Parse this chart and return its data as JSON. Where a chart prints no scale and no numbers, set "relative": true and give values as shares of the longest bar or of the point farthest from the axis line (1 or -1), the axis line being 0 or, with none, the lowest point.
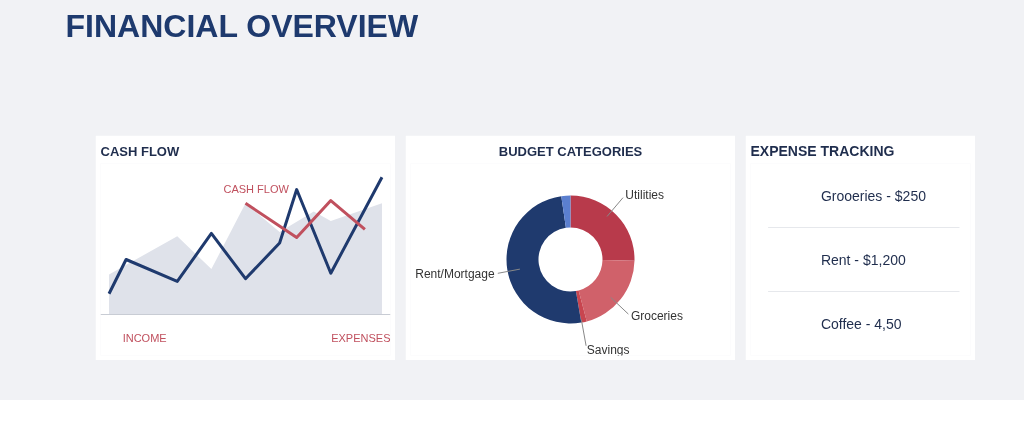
{
  "chart_data": [
    {
      "type": "other",
      "title": "FINANCIAL OVERVIEW"
    },
    {
      "type": "line",
      "title": "CASH FLOW",
      "relative": true,
      "categories": [
        null,
        null,
        null,
        null,
        null,
        null,
        null,
        null,
        null,
        null,
        null,
        null,
        null,
        null,
        null,
        null,
        null
      ],
      "annotations": [
        "INCOME",
        "EXPENSES"
      ],
      "series": [
        {
          "type": "area",
          "color": "#dfe2ea",
          "values": [
            0.29,
            null,
            null,
            null,
            0.57,
            null,
            0.33,
            null,
            0.81,
            null,
            0.6,
            null,
            0.75,
            0.68,
            null,
            null,
            0.81
          ]
        },
        {
          "type": "line",
          "color": "#1f3a6e",
          "values": [
            0.15,
            0.4,
            null,
            null,
            0.24,
            null,
            0.59,
            null,
            0.26,
            null,
            0.52,
            0.91,
            null,
            0.3,
            null,
            null,
            1.0
          ]
        },
        {
          "type": "line",
          "name": "CASH FLOW",
          "color": "#c0505e",
          "values": [
            null,
            null,
            null,
            null,
            null,
            null,
            null,
            null,
            0.81,
            null,
            null,
            0.56,
            null,
            0.83,
            null,
            0.62,
            null
          ]
        }
      ]
    },
    {
      "type": "donut",
      "title": "BUDGET CATEGORIES",
      "categories": [
        "Utilities",
        "Groceries",
        "Savings",
        "Rent/Mortgage",
        null
      ],
      "values": [
        25.3,
        20.6,
        1.4,
        50.4,
        2.3
      ],
      "colors": [
        "#b83a4b",
        "#d0616a",
        "#c8454f",
        "#1f3a6e",
        "#5b7fcf"
      ]
    },
    {
      "type": "other",
      "title": "EXPENSE TRACKING",
      "annotations": [
        "Grooeries - $250",
        "Rent - $1,200",
        "Coffee - 4,50"
      ]
    }
  ]
}
